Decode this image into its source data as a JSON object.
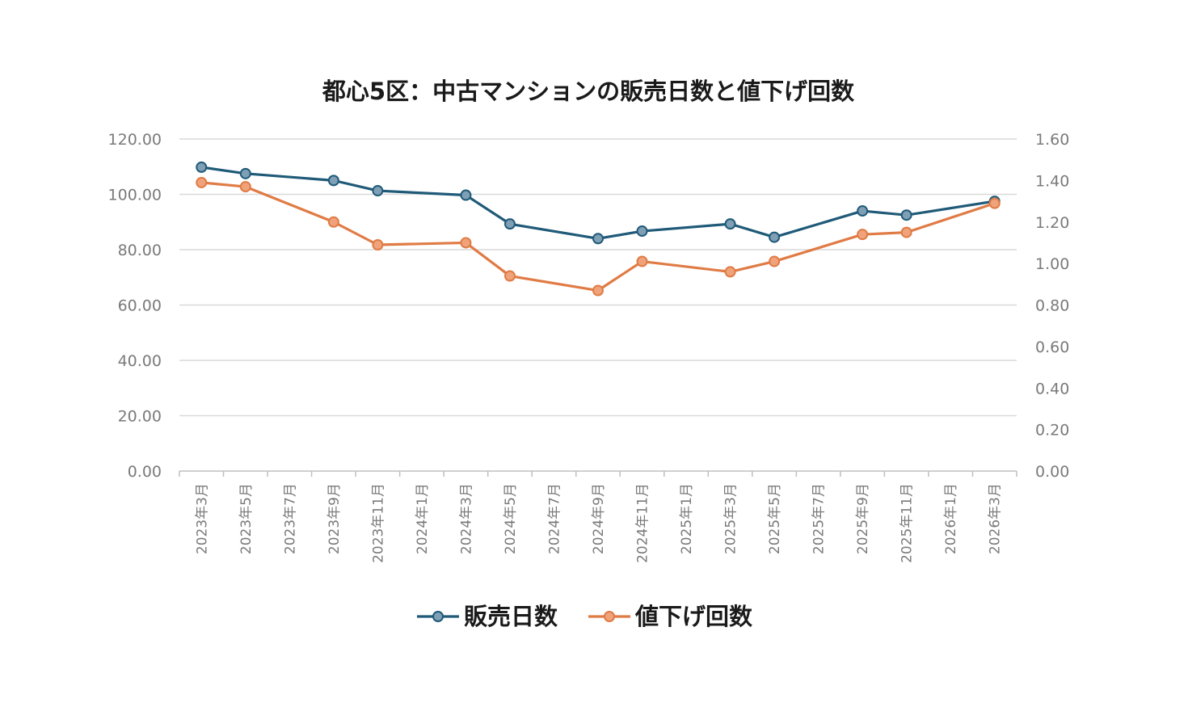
{
  "chart_data": {
    "type": "line",
    "title": "都心5区：中古マンションの販売日数と値下げ回数",
    "categories": [
      "2023年3月",
      "2023年5月",
      "2023年7月",
      "2023年9月",
      "2023年11月",
      "2024年1月",
      "2024年3月",
      "2024年5月",
      "2024年7月",
      "2024年9月",
      "2024年11月",
      "2025年1月",
      "2025年3月",
      "2025年5月",
      "2025年7月",
      "2025年9月",
      "2025年11月",
      "2026年1月",
      "2026年3月"
    ],
    "y_left": {
      "ylim": [
        0,
        120
      ],
      "ticks": [
        "0.00",
        "20.00",
        "40.00",
        "60.00",
        "80.00",
        "100.00",
        "120.00"
      ]
    },
    "y_right": {
      "ylim": [
        0,
        1.6
      ],
      "ticks": [
        "0.00",
        "0.20",
        "0.40",
        "0.60",
        "0.80",
        "1.00",
        "1.20",
        "1.40",
        "1.60"
      ]
    },
    "grid": true,
    "legend_position": "bottom",
    "series": [
      {
        "name": "販売日数",
        "axis": "left",
        "color": "#1f5a78",
        "marker_color": "#7f9fb5",
        "points": [
          {
            "x": "2023年3月",
            "y": 109.8
          },
          {
            "x": "2023年5月",
            "y": 107.5
          },
          {
            "x": "2023年9月",
            "y": 105.0
          },
          {
            "x": "2023年11月",
            "y": 101.3
          },
          {
            "x": "2024年3月",
            "y": 99.7
          },
          {
            "x": "2024年5月",
            "y": 89.3
          },
          {
            "x": "2024年9月",
            "y": 84.0
          },
          {
            "x": "2024年11月",
            "y": 86.7
          },
          {
            "x": "2025年3月",
            "y": 89.3
          },
          {
            "x": "2025年5月",
            "y": 84.5
          },
          {
            "x": "2025年9月",
            "y": 94.0
          },
          {
            "x": "2025年11月",
            "y": 92.5
          },
          {
            "x": "2026年3月",
            "y": 97.5
          }
        ]
      },
      {
        "name": "値下げ回数",
        "axis": "right",
        "color": "#e07b45",
        "marker_color": "#f0a37a",
        "points": [
          {
            "x": "2023年3月",
            "y": 1.39
          },
          {
            "x": "2023年5月",
            "y": 1.37
          },
          {
            "x": "2023年9月",
            "y": 1.2
          },
          {
            "x": "2023年11月",
            "y": 1.09
          },
          {
            "x": "2024年3月",
            "y": 1.1
          },
          {
            "x": "2024年5月",
            "y": 0.94
          },
          {
            "x": "2024年9月",
            "y": 0.87
          },
          {
            "x": "2024年11月",
            "y": 1.01
          },
          {
            "x": "2025年3月",
            "y": 0.96
          },
          {
            "x": "2025年5月",
            "y": 1.01
          },
          {
            "x": "2025年9月",
            "y": 1.14
          },
          {
            "x": "2025年11月",
            "y": 1.15
          },
          {
            "x": "2026年3月",
            "y": 1.29
          }
        ]
      }
    ]
  }
}
